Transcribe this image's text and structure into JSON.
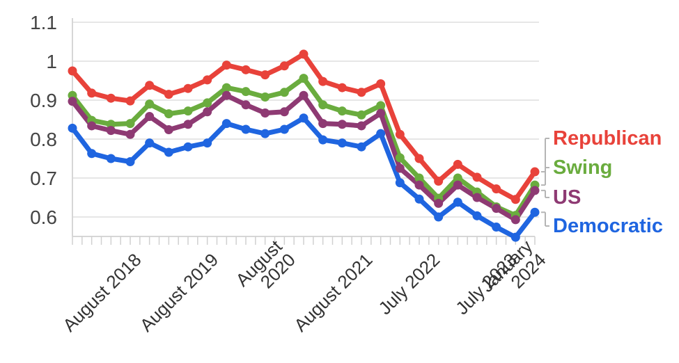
{
  "chart_data": {
    "type": "line",
    "title": "",
    "xlabel": "",
    "ylabel": "",
    "ylim": [
      0.55,
      1.1
    ],
    "y_ticks": [
      "1.1",
      "1",
      "0.9",
      "0.8",
      "0.7",
      "0.6"
    ],
    "y_tick_values": [
      1.1,
      1.0,
      0.9,
      0.8,
      0.7,
      0.6
    ],
    "grid": true,
    "legend": "right, labels at series ends",
    "x_tick_labels": [
      {
        "lines": [
          "August 2018"
        ],
        "index": 6
      },
      {
        "lines": [
          "August 2019"
        ],
        "index": 14
      },
      {
        "lines": [
          "August",
          "2020"
        ],
        "index": 22
      },
      {
        "lines": [
          "August 2021"
        ],
        "index": 30
      },
      {
        "lines": [
          "July 2022"
        ],
        "index": 37
      },
      {
        "lines": [
          "July 2023"
        ],
        "index": 45
      },
      {
        "lines": [
          "January",
          "2024"
        ],
        "index": 48
      }
    ],
    "x_minor_tick_count": 49,
    "series": [
      {
        "name": "Republican",
        "color": "#e8423a",
        "points": [
          [
            0,
            0.975
          ],
          [
            2,
            0.918
          ],
          [
            4,
            0.905
          ],
          [
            6,
            0.898
          ],
          [
            8,
            0.938
          ],
          [
            10,
            0.915
          ],
          [
            12,
            0.93
          ],
          [
            14,
            0.952
          ],
          [
            16,
            0.99
          ],
          [
            18,
            0.978
          ],
          [
            20,
            0.965
          ],
          [
            22,
            0.988
          ],
          [
            24,
            1.018
          ],
          [
            26,
            0.948
          ],
          [
            28,
            0.932
          ],
          [
            30,
            0.92
          ],
          [
            32,
            0.942
          ],
          [
            34,
            0.812
          ],
          [
            36,
            0.75
          ],
          [
            38,
            0.692
          ],
          [
            40,
            0.735
          ],
          [
            42,
            0.702
          ],
          [
            44,
            0.672
          ],
          [
            46,
            0.645
          ],
          [
            48,
            0.716
          ]
        ]
      },
      {
        "name": "Swing",
        "color": "#6aac3e",
        "points": [
          [
            0,
            0.912
          ],
          [
            2,
            0.848
          ],
          [
            4,
            0.838
          ],
          [
            6,
            0.84
          ],
          [
            8,
            0.89
          ],
          [
            10,
            0.865
          ],
          [
            12,
            0.872
          ],
          [
            14,
            0.893
          ],
          [
            16,
            0.932
          ],
          [
            18,
            0.922
          ],
          [
            20,
            0.908
          ],
          [
            22,
            0.92
          ],
          [
            24,
            0.956
          ],
          [
            26,
            0.888
          ],
          [
            28,
            0.872
          ],
          [
            30,
            0.862
          ],
          [
            32,
            0.886
          ],
          [
            34,
            0.752
          ],
          [
            36,
            0.7
          ],
          [
            38,
            0.648
          ],
          [
            40,
            0.7
          ],
          [
            42,
            0.664
          ],
          [
            44,
            0.626
          ],
          [
            46,
            0.604
          ],
          [
            48,
            0.682
          ]
        ]
      },
      {
        "name": "US",
        "color": "#8e3a73",
        "points": [
          [
            0,
            0.897
          ],
          [
            2,
            0.834
          ],
          [
            4,
            0.822
          ],
          [
            6,
            0.812
          ],
          [
            8,
            0.858
          ],
          [
            10,
            0.824
          ],
          [
            12,
            0.838
          ],
          [
            14,
            0.87
          ],
          [
            16,
            0.912
          ],
          [
            18,
            0.888
          ],
          [
            20,
            0.867
          ],
          [
            22,
            0.87
          ],
          [
            24,
            0.912
          ],
          [
            26,
            0.84
          ],
          [
            28,
            0.838
          ],
          [
            30,
            0.834
          ],
          [
            32,
            0.866
          ],
          [
            34,
            0.725
          ],
          [
            36,
            0.682
          ],
          [
            38,
            0.635
          ],
          [
            40,
            0.682
          ],
          [
            42,
            0.65
          ],
          [
            44,
            0.622
          ],
          [
            46,
            0.593
          ],
          [
            48,
            0.668
          ]
        ]
      },
      {
        "name": "Democratic",
        "color": "#1f65e0",
        "points": [
          [
            0,
            0.828
          ],
          [
            2,
            0.763
          ],
          [
            4,
            0.75
          ],
          [
            6,
            0.742
          ],
          [
            8,
            0.79
          ],
          [
            10,
            0.766
          ],
          [
            12,
            0.78
          ],
          [
            14,
            0.79
          ],
          [
            16,
            0.84
          ],
          [
            18,
            0.825
          ],
          [
            20,
            0.814
          ],
          [
            22,
            0.825
          ],
          [
            24,
            0.854
          ],
          [
            26,
            0.798
          ],
          [
            28,
            0.79
          ],
          [
            30,
            0.78
          ],
          [
            32,
            0.814
          ],
          [
            34,
            0.688
          ],
          [
            36,
            0.646
          ],
          [
            38,
            0.6
          ],
          [
            40,
            0.638
          ],
          [
            42,
            0.603
          ],
          [
            44,
            0.574
          ],
          [
            46,
            0.548
          ],
          [
            48,
            0.612
          ]
        ]
      }
    ]
  }
}
